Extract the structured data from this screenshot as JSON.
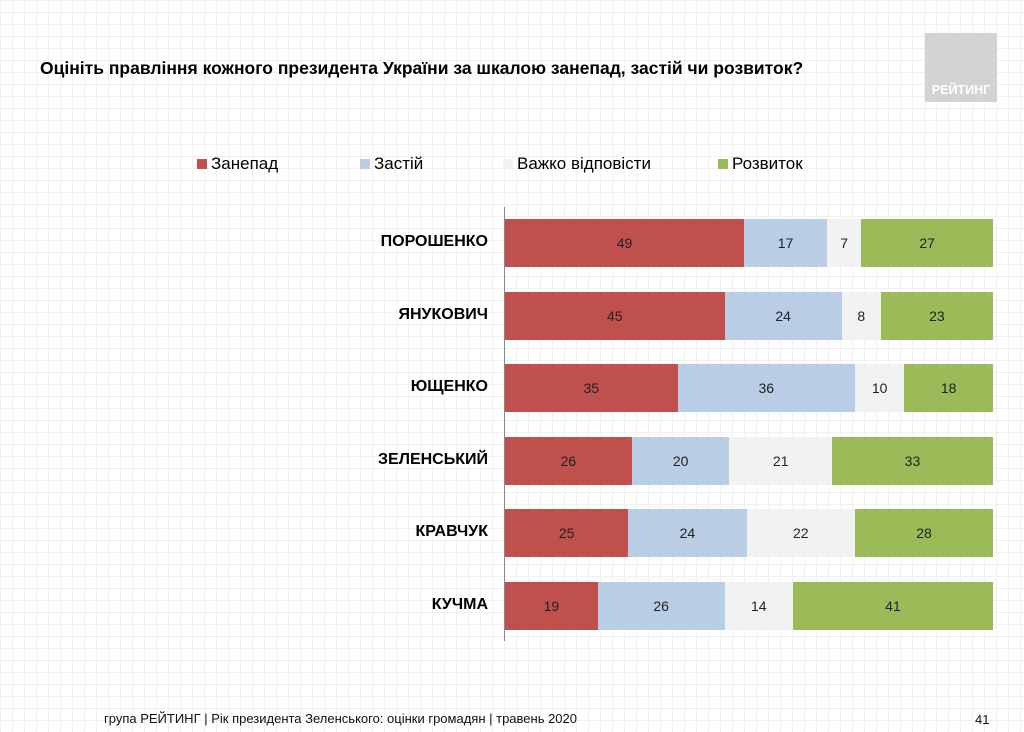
{
  "logo_text": "РЕЙТИНГ",
  "chart_data": {
    "type": "bar",
    "orientation": "horizontal",
    "stacked": true,
    "title": "Оцініть правління кожного президента України за шкалою занепад, застій чи розвиток?",
    "legend_position": "top",
    "categories": [
      "ПОРОШЕНКО",
      "ЯНУКОВИЧ",
      "ЮЩЕНКО",
      "ЗЕЛЕНСЬКИЙ",
      "КРАВЧУК",
      "КУЧМА"
    ],
    "series": [
      {
        "name": "Занепад",
        "color": "#c0504d",
        "values": [
          49,
          45,
          35,
          26,
          25,
          19
        ]
      },
      {
        "name": "Застій",
        "color": "#b9cde5",
        "values": [
          17,
          24,
          36,
          20,
          24,
          26
        ]
      },
      {
        "name": "Важко відповісти",
        "color": "#f2f2f2",
        "values": [
          7,
          8,
          10,
          21,
          22,
          14
        ]
      },
      {
        "name": "Розвиток",
        "color": "#9bbb59",
        "values": [
          27,
          23,
          18,
          33,
          28,
          41
        ]
      }
    ]
  },
  "footer": "група РЕЙТИНГ |  Рік президента Зеленського: оцінки громадян | травень 2020",
  "page_number": "41"
}
